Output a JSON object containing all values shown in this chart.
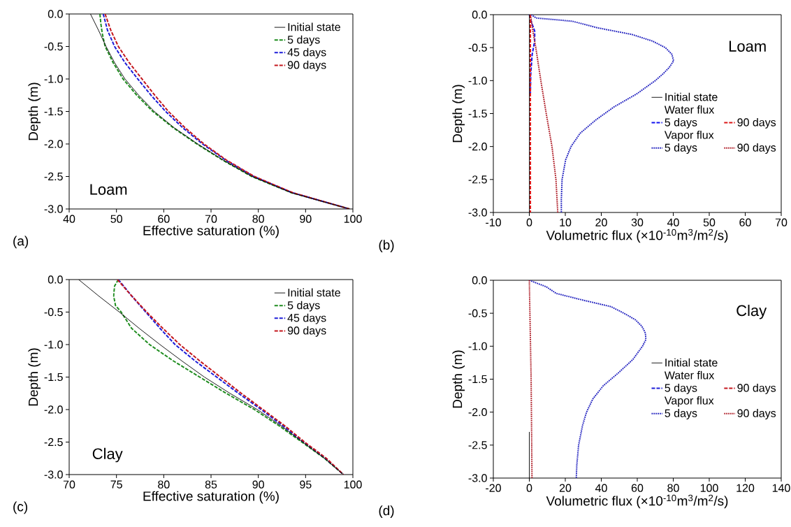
{
  "chart_data": [
    {
      "type": "line",
      "xlabel": "Effective saturation (%)",
      "ylabel": "Depth (m)",
      "xlim": [
        40,
        100
      ],
      "ylim": [
        -3,
        0
      ],
      "xticks": [
        40,
        50,
        60,
        70,
        80,
        90,
        100
      ],
      "yticks": [
        {
          "value": 0,
          "label": "0.0"
        },
        {
          "value": -0.5,
          "label": "-0.5"
        },
        {
          "value": -1,
          "label": "-1.0"
        },
        {
          "value": -1.5,
          "label": "-1.5"
        },
        {
          "value": -2,
          "label": "-2.0"
        },
        {
          "value": -2.5,
          "label": "-2.5"
        },
        {
          "value": -3,
          "label": "-3.0"
        }
      ],
      "legend": "top right",
      "annotations": [
        "(a)",
        "Loam"
      ],
      "series": [
        {
          "name": "Initial state",
          "color": "#000000",
          "line_style": "solid",
          "x": [
            44.5,
            46.2,
            47.8,
            49.6,
            51.8,
            54.7,
            58.0,
            62.2,
            67.2,
            72.6,
            78.7,
            87.0,
            99.3
          ],
          "values": [
            0,
            -0.25,
            -0.5,
            -0.75,
            -1.0,
            -1.25,
            -1.5,
            -1.75,
            -2.0,
            -2.25,
            -2.5,
            -2.75,
            -3.0
          ]
        },
        {
          "name": "5 days",
          "color": "#1e8c1e",
          "line_style": "dashed",
          "x": [
            46.5,
            46.7,
            47.0,
            47.6,
            49.3,
            51.4,
            54.3,
            57.7,
            62.0,
            67.0,
            72.5,
            78.6,
            87.0,
            99.3
          ],
          "values": [
            0,
            -0.15,
            -0.3,
            -0.5,
            -0.75,
            -1.0,
            -1.25,
            -1.5,
            -1.75,
            -2.0,
            -2.25,
            -2.5,
            -2.75,
            -3.0
          ]
        },
        {
          "name": "45 days",
          "color": "#1c1cd8",
          "line_style": "dashed",
          "x": [
            47.2,
            48.1,
            49.6,
            51.8,
            54.5,
            57.3,
            60.4,
            64.0,
            68.2,
            73.1,
            79.0,
            87.2,
            99.3
          ],
          "values": [
            0,
            -0.25,
            -0.5,
            -0.75,
            -1.0,
            -1.25,
            -1.5,
            -1.75,
            -2.0,
            -2.25,
            -2.5,
            -2.75,
            -3.0
          ]
        },
        {
          "name": "90 days",
          "color": "#c4161c",
          "line_style": "dashed",
          "x": [
            47.6,
            48.8,
            50.4,
            52.7,
            55.4,
            58.1,
            61.0,
            64.5,
            68.5,
            73.3,
            79.2,
            87.3,
            99.3
          ],
          "values": [
            0,
            -0.25,
            -0.5,
            -0.75,
            -1.0,
            -1.25,
            -1.5,
            -1.75,
            -2.0,
            -2.25,
            -2.5,
            -2.75,
            -3.0
          ]
        }
      ]
    },
    {
      "type": "line",
      "xlabel": "Volumetric flux (×10$^{-10}$m$^{3}$/m$^{2}$/s)",
      "ylabel": "Depth (m)",
      "xlim": [
        -10,
        70
      ],
      "ylim": [
        -3,
        0
      ],
      "xticks": [
        -10,
        0,
        10,
        20,
        30,
        40,
        50,
        60,
        70
      ],
      "yticks": [
        {
          "value": 0,
          "label": "0.0"
        },
        {
          "value": -0.5,
          "label": "-0.5"
        },
        {
          "value": -1,
          "label": "-1.0"
        },
        {
          "value": -1.5,
          "label": "-1.5"
        },
        {
          "value": -2,
          "label": "-2.0"
        },
        {
          "value": -2.5,
          "label": "-2.5"
        },
        {
          "value": -3,
          "label": "-3.0"
        }
      ],
      "legend": "right",
      "annotations": [
        "(b)",
        "Loam",
        "Water flux",
        "Vapor flux"
      ],
      "series": [
        {
          "name": "Initial state",
          "color": "#000000",
          "line_style": "solid",
          "x": [
            0,
            0
          ],
          "values": [
            0,
            -3.0
          ]
        },
        {
          "name": "5 days",
          "color": "#1010f0",
          "line_style": "dashed",
          "x": [
            0,
            0.5,
            1.5,
            1.5,
            0.8,
            0.4,
            0.3
          ],
          "values": [
            0,
            -0.1,
            -0.25,
            -0.4,
            -0.6,
            -0.9,
            -1.2
          ]
        },
        {
          "name": "90 days",
          "color": "#dc1414",
          "line_style": "dashed",
          "x": [
            0.3,
            0.3,
            0.3,
            0.3
          ],
          "values": [
            0,
            -0.3,
            -1.0,
            -3.0
          ]
        },
        {
          "name": "5 days",
          "color": "#2424c0",
          "line_style": "dotted",
          "x": [
            0.5,
            1.9,
            12,
            19,
            28.5,
            34.2,
            37.8,
            39.6,
            40.1,
            38.9,
            37.1,
            35,
            29.9,
            23.5,
            18.4,
            14.1,
            11.6,
            10.1,
            9.1,
            8.9,
            8.9
          ],
          "values": [
            0,
            -0.05,
            -0.1,
            -0.2,
            -0.3,
            -0.4,
            -0.5,
            -0.6,
            -0.7,
            -0.8,
            -0.9,
            -1.0,
            -1.2,
            -1.4,
            -1.6,
            -1.8,
            -2.0,
            -2.2,
            -2.5,
            -2.8,
            -3.0
          ]
        },
        {
          "name": "90 days",
          "color": "#b0202a",
          "line_style": "dotted",
          "x": [
            0.3,
            1.0,
            1.8,
            3.2,
            4.7,
            6.3,
            7.4,
            7.9
          ],
          "values": [
            0,
            -0.25,
            -0.5,
            -1.0,
            -1.5,
            -2.0,
            -2.5,
            -3.0
          ]
        }
      ]
    },
    {
      "type": "line",
      "xlabel": "Effective saturation (%)",
      "ylabel": "Depth (m)",
      "xlim": [
        70,
        100
      ],
      "ylim": [
        -3,
        0
      ],
      "xticks": [
        70,
        75,
        80,
        85,
        90,
        95,
        100
      ],
      "yticks": [
        {
          "value": 0,
          "label": "0.0"
        },
        {
          "value": -0.5,
          "label": "-0.5"
        },
        {
          "value": -1,
          "label": "-1.0"
        },
        {
          "value": -1.5,
          "label": "-1.5"
        },
        {
          "value": -2,
          "label": "-2.0"
        },
        {
          "value": -2.5,
          "label": "-2.5"
        },
        {
          "value": -3,
          "label": "-3.0"
        }
      ],
      "legend": "top right",
      "annotations": [
        "(c)",
        "Clay"
      ],
      "series": [
        {
          "name": "Initial state",
          "color": "#000000",
          "line_style": "solid",
          "x": [
            71.0,
            73.1,
            75.3,
            77.4,
            79.6,
            81.9,
            84.3,
            87.0,
            89.9,
            92.4,
            94.7,
            97.0,
            99.0
          ],
          "values": [
            0,
            -0.25,
            -0.5,
            -0.75,
            -1.0,
            -1.25,
            -1.5,
            -1.75,
            -2.0,
            -2.25,
            -2.5,
            -2.75,
            -3.0
          ]
        },
        {
          "name": "5 days",
          "color": "#1e8c1e",
          "line_style": "dashed",
          "x": [
            75.2,
            74.8,
            74.7,
            74.9,
            75.5,
            76.6,
            78.5,
            81.0,
            83.8,
            86.6,
            89.6,
            92.2,
            94.6,
            97.0,
            99.0
          ],
          "values": [
            0,
            -0.1,
            -0.25,
            -0.4,
            -0.5,
            -0.75,
            -1.0,
            -1.25,
            -1.5,
            -1.75,
            -2.0,
            -2.25,
            -2.5,
            -2.75,
            -3.0
          ]
        },
        {
          "name": "45 days",
          "color": "#1c1cd8",
          "line_style": "dashed",
          "x": [
            75.2,
            76.6,
            78.1,
            79.6,
            81.2,
            83.3,
            85.6,
            87.9,
            90.3,
            92.6,
            94.8,
            97.1,
            99.0
          ],
          "values": [
            0,
            -0.25,
            -0.5,
            -0.75,
            -1.0,
            -1.25,
            -1.5,
            -1.75,
            -2.0,
            -2.25,
            -2.5,
            -2.75,
            -3.0
          ]
        },
        {
          "name": "90 days",
          "color": "#c4161c",
          "line_style": "dashed",
          "x": [
            75.1,
            76.6,
            78.2,
            79.9,
            81.7,
            83.8,
            86.0,
            88.2,
            90.5,
            92.8,
            94.9,
            97.2,
            99.0
          ],
          "values": [
            0,
            -0.25,
            -0.5,
            -0.75,
            -1.0,
            -1.25,
            -1.5,
            -1.75,
            -2.0,
            -2.25,
            -2.5,
            -2.75,
            -3.0
          ]
        }
      ]
    },
    {
      "type": "line",
      "xlabel": "Volumetric flux (×10$^{-10}$m$^{3}$/m$^{2}$/s)",
      "ylabel": "Depth (m)",
      "xlim": [
        -20,
        140
      ],
      "ylim": [
        -3,
        0
      ],
      "xticks": [
        -20,
        0,
        20,
        40,
        60,
        80,
        100,
        120,
        140
      ],
      "yticks": [
        {
          "value": 0,
          "label": "0.0"
        },
        {
          "value": -0.5,
          "label": "-0.5"
        },
        {
          "value": -1,
          "label": "-1.0"
        },
        {
          "value": -1.5,
          "label": "-1.5"
        },
        {
          "value": -2,
          "label": "-2.0"
        },
        {
          "value": -2.5,
          "label": "-2.5"
        },
        {
          "value": -3,
          "label": "-3.0"
        }
      ],
      "legend": "right",
      "annotations": [
        "(d)",
        "Clay",
        "Water flux",
        "Vapor flux"
      ],
      "series": [
        {
          "name": "Initial state",
          "color": "#000000",
          "line_style": "solid",
          "x": [
            0,
            0
          ],
          "values": [
            -2.3,
            -3.0
          ]
        },
        {
          "name": "5 days",
          "color": "#1c1cd8",
          "line_style": "dashed"
        },
        {
          "name": "90 days",
          "color": "#c4161c",
          "line_style": "dashed"
        },
        {
          "name": "5 days",
          "color": "#2424c0",
          "line_style": "dotted",
          "x": [
            0,
            9.5,
            15,
            29.6,
            45.4,
            52.6,
            59,
            62.6,
            64.5,
            64.8,
            62.9,
            57.6,
            49.7,
            41.1,
            35.3,
            31.8,
            29.6,
            27.4,
            26.4,
            26.1
          ],
          "values": [
            0,
            -0.1,
            -0.2,
            -0.3,
            -0.4,
            -0.5,
            -0.6,
            -0.7,
            -0.8,
            -0.9,
            -1.0,
            -1.2,
            -1.4,
            -1.6,
            -1.8,
            -2.0,
            -2.2,
            -2.5,
            -2.8,
            -3.0
          ]
        },
        {
          "name": "90 days",
          "color": "#b0202a",
          "line_style": "dotted",
          "x": [
            0,
            1.0,
            1.5
          ],
          "values": [
            0,
            -1.5,
            -3.0
          ]
        }
      ]
    }
  ]
}
